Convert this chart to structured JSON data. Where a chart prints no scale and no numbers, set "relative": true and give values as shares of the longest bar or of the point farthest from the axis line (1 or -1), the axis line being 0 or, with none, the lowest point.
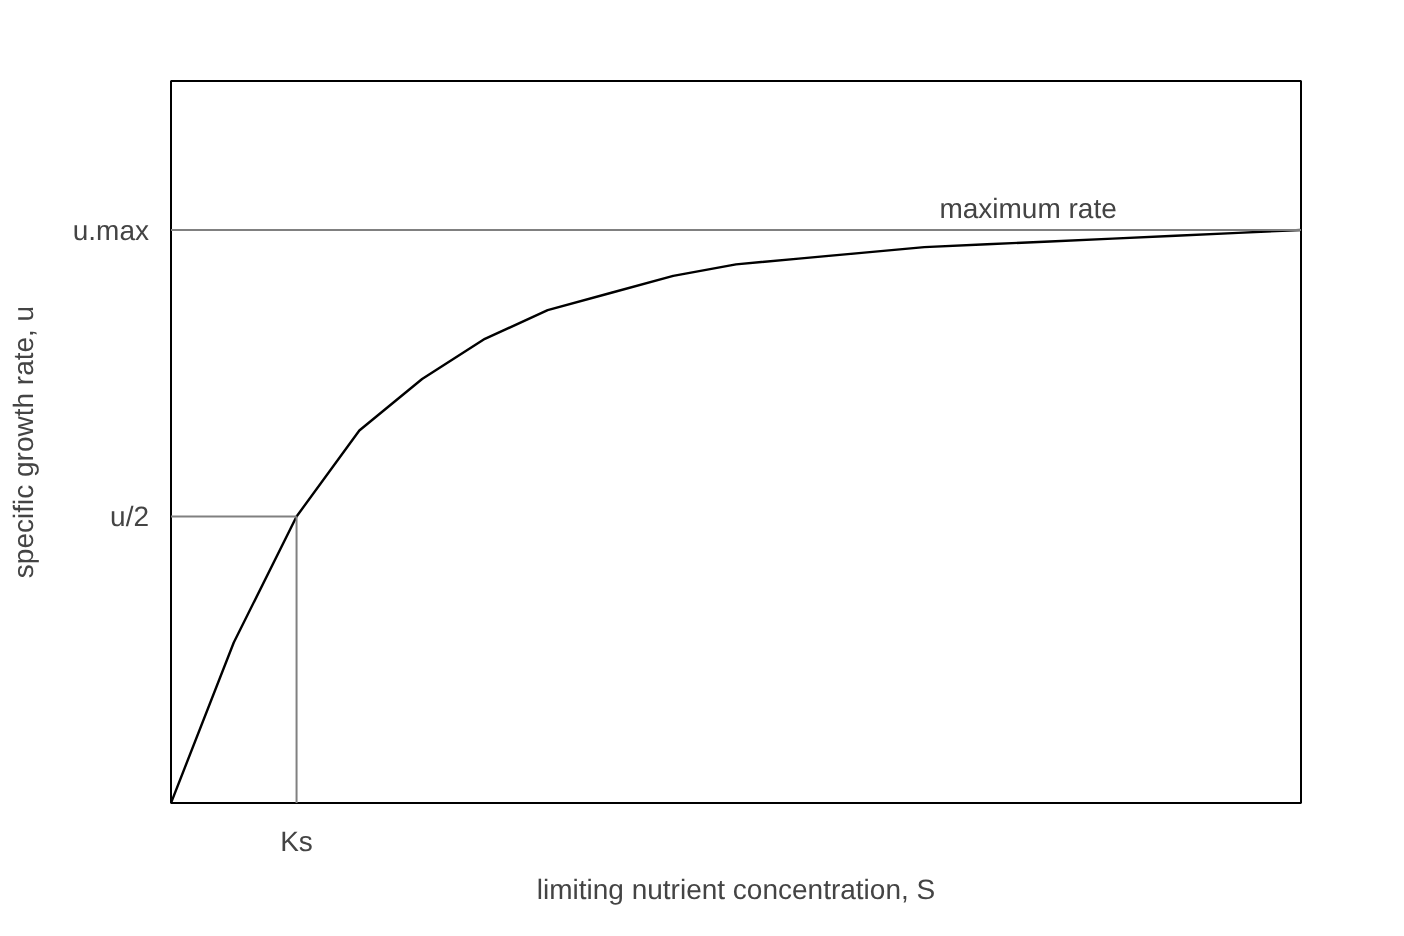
{
  "chart_data": {
    "type": "line",
    "relative": true,
    "xlabel": "limiting nutrient concentration, S",
    "ylabel": "specific growth rate, u",
    "categories": [
      null,
      null,
      null,
      null,
      null,
      null,
      null,
      null,
      null,
      null,
      null,
      null,
      null,
      null,
      null,
      null,
      null,
      null,
      null
    ],
    "series": [
      {
        "color": "#000000",
        "values": [
          0,
          0.28,
          0.5,
          0.65,
          0.74,
          0.81,
          0.86,
          0.89,
          0.92,
          0.94,
          0.95,
          0.96,
          0.97,
          0.975,
          0.98,
          0.985,
          0.99,
          0.995,
          1
        ]
      }
    ],
    "ref_lines": [
      {
        "axis": "y",
        "value": 1,
        "label": "u.max",
        "color": "#808080"
      },
      {
        "axis": "y",
        "value": 0.5,
        "label": "u/2",
        "color": "#808080"
      }
    ],
    "annotations": [
      {
        "text": "maximum rate",
        "y": 1
      },
      "Ks"
    ],
    "legend": false,
    "marker": "none",
    "line_style": "solid"
  }
}
